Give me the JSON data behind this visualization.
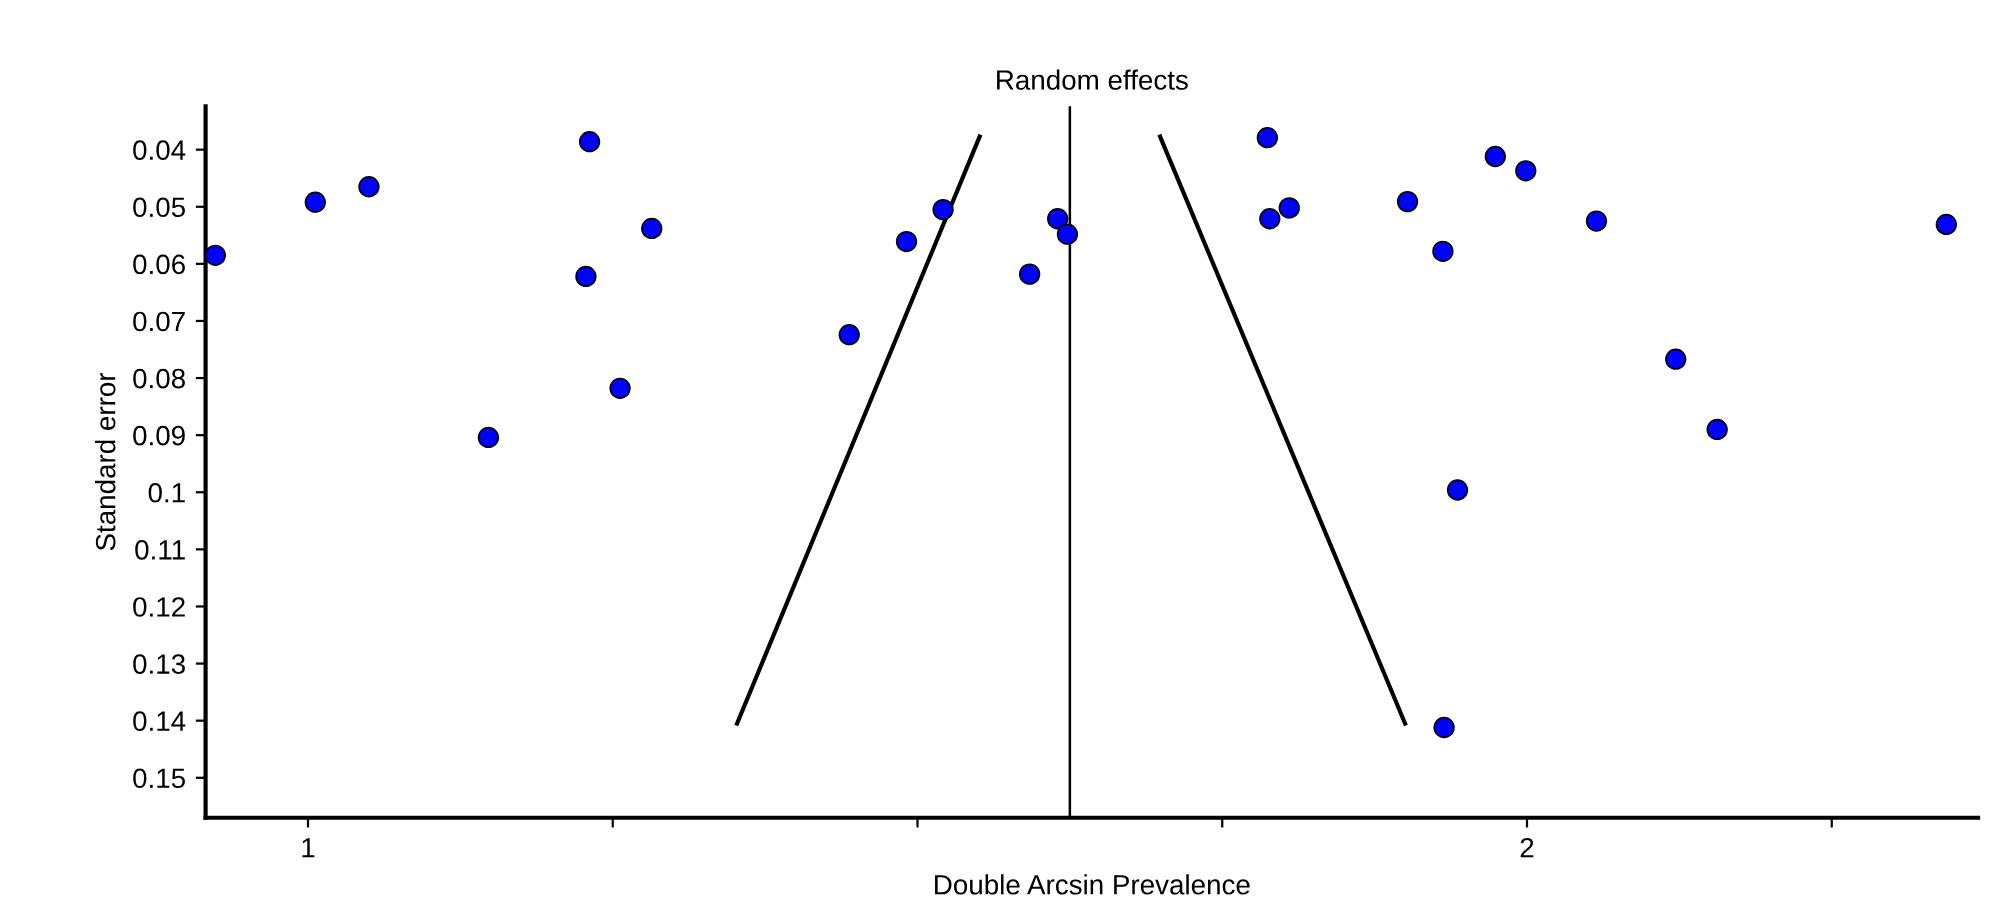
{
  "chart_data": {
    "type": "scatter",
    "title": "Random effects",
    "xlabel": "Double Arcsin Prevalence",
    "ylabel": "Standard error",
    "xlim": [
      0.916,
      2.37
    ],
    "ylim": [
      0.157,
      0.0324
    ],
    "xticks": [
      1,
      {
        "value": 1.25,
        "label": null
      },
      {
        "value": 1.5,
        "label": null
      },
      {
        "value": 1.75,
        "label": null
      },
      2,
      {
        "value": 2.25,
        "label": null
      }
    ],
    "yticks": [
      0.04,
      0.05,
      0.06,
      0.07,
      0.08,
      0.09,
      0.1,
      0.11,
      0.12,
      0.13,
      0.14,
      0.15
    ],
    "grid": false,
    "legend": false,
    "marker": "circle",
    "ref_lines": [
      {
        "axis": "x",
        "value": 1.625,
        "color": "#000000"
      }
    ],
    "series": [
      {
        "color": "#0000ff",
        "x": [
          0.924,
          1.006,
          1.05,
          1.231,
          1.282,
          1.228,
          1.256,
          1.148,
          1.444,
          1.491,
          1.521,
          1.592,
          1.615,
          1.623,
          1.787,
          1.789,
          1.805,
          1.902,
          1.931,
          1.974,
          1.999,
          2.057,
          2.344,
          2.122,
          2.156,
          1.943,
          1.932
        ],
        "values": [
          0.0585,
          0.0492,
          0.0465,
          0.0386,
          0.0538,
          0.0622,
          0.0818,
          0.0904,
          0.0724,
          0.0561,
          0.0505,
          0.0618,
          0.0521,
          0.0548,
          0.0379,
          0.0521,
          0.0502,
          0.0491,
          0.0578,
          0.0412,
          0.0437,
          0.0525,
          0.0531,
          0.0767,
          0.089,
          0.0996,
          0.1412
        ]
      },
      {
        "type": "line",
        "color": "#000000",
        "marker": "none",
        "x": [
          1.352,
          1.551
        ],
        "values": [
          0.1405,
          0.0377
        ]
      },
      {
        "type": "line",
        "color": "#000000",
        "marker": "none",
        "x": [
          1.9,
          1.699
        ],
        "values": [
          0.1405,
          0.0377
        ]
      }
    ]
  }
}
